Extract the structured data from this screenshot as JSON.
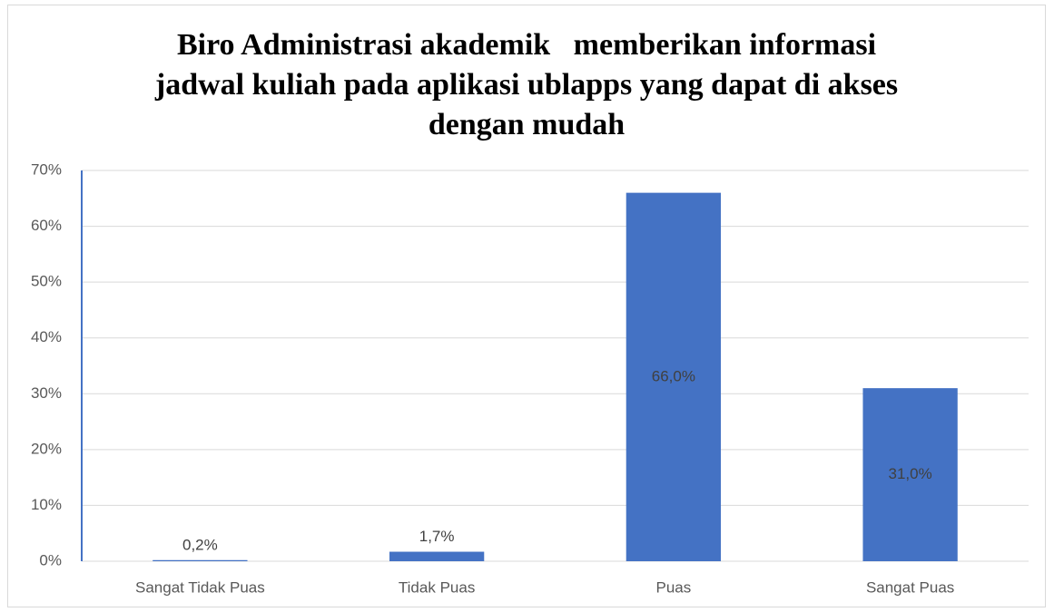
{
  "chart_data": {
    "type": "bar",
    "title": [
      "Biro Administrasi akademik   memberikan informasi",
      "jadwal kuliah pada aplikasi ublapps yang dapat di akses",
      "dengan mudah"
    ],
    "categories": [
      "Sangat Tidak Puas",
      "Tidak Puas",
      "Puas",
      "Sangat Puas"
    ],
    "values": [
      0.2,
      1.7,
      66.0,
      31.0
    ],
    "value_labels": [
      "0,2%",
      "1,7%",
      "66,0%",
      "31,0%"
    ],
    "color": "#4472c4",
    "ylim": [
      0,
      70
    ],
    "yticks": [
      {
        "value": 0,
        "label": "0%"
      },
      {
        "value": 10,
        "label": "10%"
      },
      {
        "value": 20,
        "label": "20%"
      },
      {
        "value": 30,
        "label": "30%"
      },
      {
        "value": 40,
        "label": "40%"
      },
      {
        "value": 50,
        "label": "50%"
      },
      {
        "value": 60,
        "label": "60%"
      },
      {
        "value": 70,
        "label": "70%"
      }
    ],
    "grid": true
  }
}
